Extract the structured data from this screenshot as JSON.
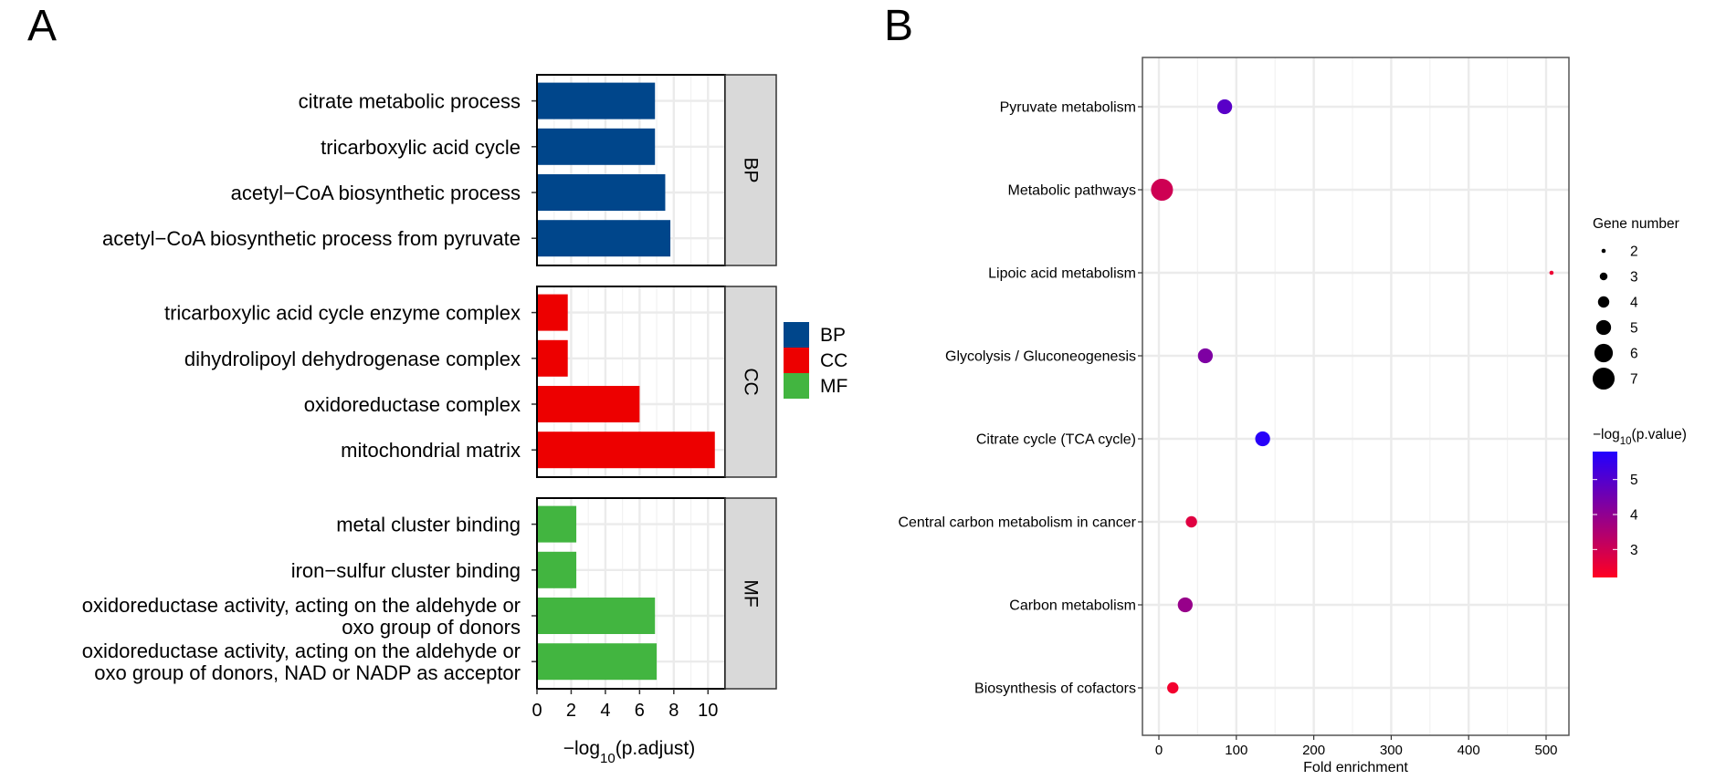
{
  "panels": {
    "a": "A",
    "b": "B"
  },
  "chart_data": [
    {
      "type": "bar",
      "orientation": "horizontal",
      "xlabel": "−log",
      "xlabel_sub": "10",
      "xlabel_tail": "(p.adjust)",
      "xlim": [
        0,
        11
      ],
      "xticks": [
        0,
        2,
        4,
        6,
        8,
        10
      ],
      "grid": true,
      "legend": {
        "position": "right",
        "items": [
          {
            "name": "BP",
            "color": "#00468B"
          },
          {
            "name": "CC",
            "color": "#ED0000"
          },
          {
            "name": "MF",
            "color": "#42B540"
          }
        ]
      },
      "facets": [
        {
          "name": "BP",
          "color": "#00468B",
          "categories": [
            {
              "label": [
                "citrate metabolic process"
              ],
              "value": 6.9
            },
            {
              "label": [
                "tricarboxylic acid cycle"
              ],
              "value": 6.9
            },
            {
              "label": [
                "acetyl−CoA biosynthetic process"
              ],
              "value": 7.5
            },
            {
              "label": [
                "acetyl−CoA biosynthetic process from pyruvate"
              ],
              "value": 7.8
            }
          ]
        },
        {
          "name": "CC",
          "color": "#ED0000",
          "categories": [
            {
              "label": [
                "tricarboxylic acid cycle enzyme complex"
              ],
              "value": 1.8
            },
            {
              "label": [
                "dihydrolipoyl dehydrogenase complex"
              ],
              "value": 1.8
            },
            {
              "label": [
                "oxidoreductase complex"
              ],
              "value": 6.0
            },
            {
              "label": [
                "mitochondrial matrix"
              ],
              "value": 10.4
            }
          ]
        },
        {
          "name": "MF",
          "color": "#42B540",
          "categories": [
            {
              "label": [
                "metal cluster binding"
              ],
              "value": 2.3
            },
            {
              "label": [
                "iron−sulfur cluster binding"
              ],
              "value": 2.3
            },
            {
              "label": [
                "oxidoreductase activity, acting on the aldehyde or",
                "oxo group of donors"
              ],
              "value": 6.9
            },
            {
              "label": [
                "oxidoreductase activity, acting on the aldehyde or",
                "oxo group of donors, NAD or NADP as acceptor"
              ],
              "value": 7.0
            }
          ]
        }
      ]
    },
    {
      "type": "scatter",
      "xlabel": "Fold enrichment",
      "xlim": [
        -20,
        530
      ],
      "xticks": [
        0,
        100,
        200,
        300,
        400,
        500
      ],
      "grid": true,
      "categories": [
        "Pyruvate metabolism",
        "Metabolic pathways",
        "Lipoic acid metabolism",
        "Glycolysis / Gluconeogenesis",
        "Citrate cycle (TCA cycle)",
        "Central carbon metabolism in cancer",
        "Carbon metabolism",
        "Biosynthesis of cofactors"
      ],
      "points": [
        {
          "pathway": "Pyruvate metabolism",
          "fold_enrichment": 85,
          "gene_number": 5,
          "neg_log10_p": 4.9
        },
        {
          "pathway": "Metabolic pathways",
          "fold_enrichment": 4,
          "gene_number": 7,
          "neg_log10_p": 3.0
        },
        {
          "pathway": "Lipoic acid metabolism",
          "fold_enrichment": 507,
          "gene_number": 2,
          "neg_log10_p": 2.5
        },
        {
          "pathway": "Glycolysis / Gluconeogenesis",
          "fold_enrichment": 60,
          "gene_number": 5,
          "neg_log10_p": 4.3
        },
        {
          "pathway": "Citrate cycle (TCA cycle)",
          "fold_enrichment": 134,
          "gene_number": 5,
          "neg_log10_p": 5.7
        },
        {
          "pathway": "Central carbon metabolism in cancer",
          "fold_enrichment": 42,
          "gene_number": 4,
          "neg_log10_p": 2.7
        },
        {
          "pathway": "Carbon metabolism",
          "fold_enrichment": 34,
          "gene_number": 5,
          "neg_log10_p": 3.9
        },
        {
          "pathway": "Biosynthesis of cofactors",
          "fold_enrichment": 18,
          "gene_number": 4,
          "neg_log10_p": 2.4
        }
      ],
      "size_legend": {
        "title": "Gene number",
        "values": [
          2,
          3,
          4,
          5,
          6,
          7
        ]
      },
      "color_legend": {
        "title_pre": "−log",
        "title_sub": "10",
        "title_post": "(p.value)",
        "range": [
          2.2,
          5.8
        ],
        "ticks": [
          3,
          4,
          5
        ],
        "low_color": "#FF0022",
        "high_color": "#2200FF"
      }
    }
  ]
}
